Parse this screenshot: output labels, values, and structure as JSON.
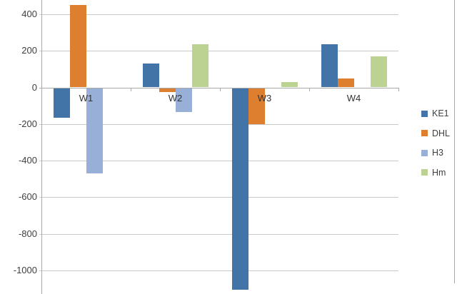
{
  "chart_data": {
    "type": "bar",
    "title": "",
    "categories": [
      "W1",
      "W2",
      "W3",
      "W4"
    ],
    "series": [
      {
        "name": "KE1",
        "color": "#4274a7",
        "values": [
          -160,
          130,
          -1100,
          235
        ]
      },
      {
        "name": "DHL",
        "color": "#de7e2f",
        "values": [
          450,
          -20,
          -195,
          50
        ]
      },
      {
        "name": "H3",
        "color": "#98afd8",
        "values": [
          -465,
          -130,
          0,
          0
        ]
      },
      {
        "name": "Hm",
        "color": "#bcd292",
        "values": [
          0,
          235,
          30,
          170
        ]
      }
    ],
    "y_axis": {
      "ticks": [
        400,
        200,
        0,
        -200,
        -400,
        -600,
        -800,
        -1000
      ],
      "tick_step": 200,
      "visible_range": [
        -1130,
        478
      ]
    },
    "xlabel": "",
    "ylabel": "",
    "grid": true,
    "legend": {
      "position": "right",
      "entries": [
        "KE1",
        "DHL",
        "H3",
        "Hm"
      ]
    },
    "colors": {
      "background": "#ffffff",
      "gridline": "#c9c9c9",
      "axis": "#a9a9a9",
      "label_text": "#404040"
    },
    "notes": "chart cropped at bottom edge below -1000 gridline"
  }
}
